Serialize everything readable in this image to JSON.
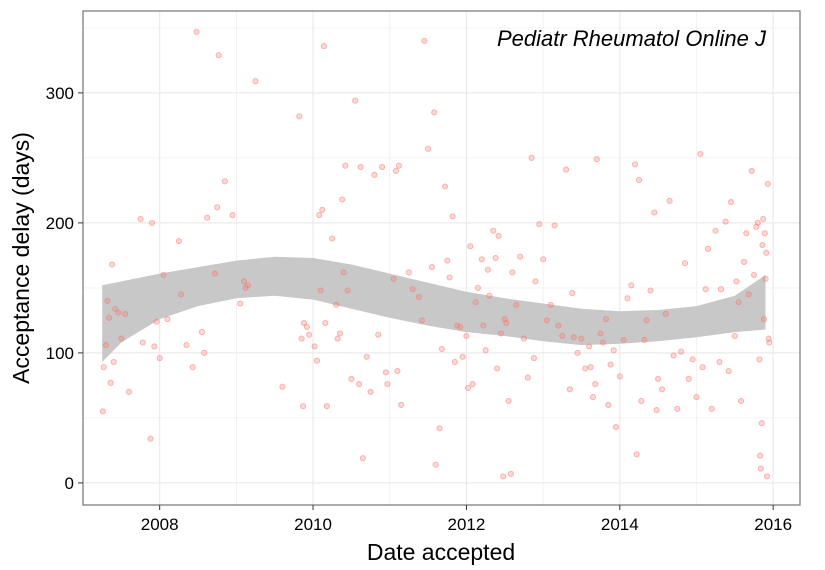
{
  "chart_data": {
    "type": "scatter",
    "title": "",
    "annotation": "Pediatr Rheumatol Online J",
    "xlabel": "Date accepted",
    "ylabel": "Acceptance delay (days)",
    "xlim": [
      2007.0,
      2016.35
    ],
    "ylim": [
      -17,
      363
    ],
    "x_ticks": [
      2008,
      2010,
      2012,
      2014,
      2016
    ],
    "x_tick_labels": [
      "2008",
      "2010",
      "2012",
      "2014",
      "2016"
    ],
    "y_ticks": [
      0,
      100,
      200,
      300
    ],
    "y_tick_labels": [
      "0",
      "100",
      "200",
      "300"
    ],
    "grid": true,
    "colors": {
      "points": "#f8766d",
      "ribbon": "#c8c8c8",
      "panel_border": "#7f7f7f",
      "grid": "#ebebeb"
    },
    "smooth_band": {
      "x": [
        2007.25,
        2007.5,
        2008.0,
        2008.5,
        2009.0,
        2009.5,
        2010.0,
        2010.5,
        2011.0,
        2011.5,
        2012.0,
        2012.5,
        2013.0,
        2013.5,
        2014.0,
        2014.5,
        2015.0,
        2015.5,
        2015.9
      ],
      "upper": [
        152,
        155,
        161,
        166,
        171,
        174,
        173,
        168,
        161,
        154,
        147,
        142,
        138,
        134,
        132,
        133,
        136,
        144,
        160
      ],
      "lower": [
        93,
        108,
        126,
        136,
        142,
        144,
        141,
        134,
        127,
        121,
        116,
        113,
        109,
        106,
        107,
        109,
        112,
        116,
        118
      ]
    },
    "series": [
      {
        "name": "Pediatr Rheumatol Online J",
        "points": [
          [
            2007.26,
            55
          ],
          [
            2007.27,
            89
          ],
          [
            2007.3,
            106
          ],
          [
            2007.32,
            140
          ],
          [
            2007.34,
            127
          ],
          [
            2007.36,
            77
          ],
          [
            2007.38,
            168
          ],
          [
            2007.4,
            93
          ],
          [
            2007.42,
            134
          ],
          [
            2007.46,
            131
          ],
          [
            2007.5,
            111
          ],
          [
            2007.55,
            130
          ],
          [
            2007.6,
            70
          ],
          [
            2007.75,
            203
          ],
          [
            2007.78,
            108
          ],
          [
            2007.88,
            34
          ],
          [
            2007.9,
            200
          ],
          [
            2007.93,
            105
          ],
          [
            2007.96,
            124
          ],
          [
            2008.0,
            96
          ],
          [
            2008.05,
            160
          ],
          [
            2008.1,
            126
          ],
          [
            2008.25,
            186
          ],
          [
            2008.28,
            145
          ],
          [
            2008.35,
            106
          ],
          [
            2008.43,
            89
          ],
          [
            2008.48,
            347
          ],
          [
            2008.55,
            116
          ],
          [
            2008.58,
            100
          ],
          [
            2008.62,
            204
          ],
          [
            2008.72,
            161
          ],
          [
            2008.75,
            212
          ],
          [
            2008.77,
            329
          ],
          [
            2008.85,
            232
          ],
          [
            2008.95,
            206
          ],
          [
            2009.05,
            138
          ],
          [
            2009.1,
            155
          ],
          [
            2009.12,
            150
          ],
          [
            2009.15,
            152
          ],
          [
            2009.25,
            309
          ],
          [
            2009.6,
            74
          ],
          [
            2009.82,
            282
          ],
          [
            2009.85,
            111
          ],
          [
            2009.87,
            59
          ],
          [
            2009.88,
            123
          ],
          [
            2009.92,
            120
          ],
          [
            2009.95,
            114
          ],
          [
            2010.02,
            105
          ],
          [
            2010.05,
            94
          ],
          [
            2010.08,
            206
          ],
          [
            2010.1,
            148
          ],
          [
            2010.12,
            210
          ],
          [
            2010.14,
            336
          ],
          [
            2010.16,
            123
          ],
          [
            2010.18,
            59
          ],
          [
            2010.25,
            188
          ],
          [
            2010.3,
            137
          ],
          [
            2010.32,
            111
          ],
          [
            2010.35,
            115
          ],
          [
            2010.38,
            218
          ],
          [
            2010.4,
            162
          ],
          [
            2010.42,
            244
          ],
          [
            2010.45,
            148
          ],
          [
            2010.5,
            80
          ],
          [
            2010.55,
            294
          ],
          [
            2010.6,
            76
          ],
          [
            2010.62,
            243
          ],
          [
            2010.65,
            19
          ],
          [
            2010.7,
            97
          ],
          [
            2010.75,
            70
          ],
          [
            2010.8,
            237
          ],
          [
            2010.85,
            114
          ],
          [
            2010.9,
            243
          ],
          [
            2010.95,
            85
          ],
          [
            2010.97,
            76
          ],
          [
            2011.05,
            157
          ],
          [
            2011.08,
            240
          ],
          [
            2011.1,
            86
          ],
          [
            2011.12,
            244
          ],
          [
            2011.15,
            60
          ],
          [
            2011.25,
            162
          ],
          [
            2011.3,
            149
          ],
          [
            2011.38,
            143
          ],
          [
            2011.42,
            125
          ],
          [
            2011.45,
            340
          ],
          [
            2011.5,
            257
          ],
          [
            2011.55,
            166
          ],
          [
            2011.58,
            285
          ],
          [
            2011.6,
            14
          ],
          [
            2011.65,
            42
          ],
          [
            2011.68,
            103
          ],
          [
            2011.72,
            228
          ],
          [
            2011.75,
            171
          ],
          [
            2011.78,
            158
          ],
          [
            2011.82,
            205
          ],
          [
            2011.85,
            93
          ],
          [
            2011.88,
            121
          ],
          [
            2011.92,
            120
          ],
          [
            2011.95,
            97
          ],
          [
            2012.0,
            113
          ],
          [
            2012.02,
            73
          ],
          [
            2012.05,
            182
          ],
          [
            2012.08,
            76
          ],
          [
            2012.12,
            139
          ],
          [
            2012.15,
            150
          ],
          [
            2012.2,
            172
          ],
          [
            2012.22,
            121
          ],
          [
            2012.25,
            102
          ],
          [
            2012.28,
            164
          ],
          [
            2012.3,
            144
          ],
          [
            2012.35,
            194
          ],
          [
            2012.38,
            173
          ],
          [
            2012.4,
            88
          ],
          [
            2012.42,
            190
          ],
          [
            2012.45,
            115
          ],
          [
            2012.48,
            5
          ],
          [
            2012.5,
            126
          ],
          [
            2012.52,
            123
          ],
          [
            2012.55,
            63
          ],
          [
            2012.58,
            7
          ],
          [
            2012.6,
            162
          ],
          [
            2012.65,
            137
          ],
          [
            2012.7,
            174
          ],
          [
            2012.75,
            111
          ],
          [
            2012.8,
            81
          ],
          [
            2012.85,
            250
          ],
          [
            2012.88,
            96
          ],
          [
            2012.9,
            155
          ],
          [
            2012.95,
            199
          ],
          [
            2013.0,
            172
          ],
          [
            2013.05,
            125
          ],
          [
            2013.1,
            137
          ],
          [
            2013.15,
            198
          ],
          [
            2013.2,
            121
          ],
          [
            2013.25,
            113
          ],
          [
            2013.3,
            241
          ],
          [
            2013.35,
            72
          ],
          [
            2013.38,
            146
          ],
          [
            2013.4,
            112
          ],
          [
            2013.45,
            100
          ],
          [
            2013.5,
            111
          ],
          [
            2013.55,
            88
          ],
          [
            2013.6,
            105
          ],
          [
            2013.62,
            89
          ],
          [
            2013.65,
            66
          ],
          [
            2013.68,
            76
          ],
          [
            2013.7,
            249
          ],
          [
            2013.75,
            115
          ],
          [
            2013.78,
            108
          ],
          [
            2013.82,
            126
          ],
          [
            2013.85,
            60
          ],
          [
            2013.88,
            91
          ],
          [
            2013.92,
            102
          ],
          [
            2013.95,
            43
          ],
          [
            2014.0,
            82
          ],
          [
            2014.05,
            110
          ],
          [
            2014.1,
            142
          ],
          [
            2014.15,
            152
          ],
          [
            2014.2,
            245
          ],
          [
            2014.22,
            22
          ],
          [
            2014.25,
            233
          ],
          [
            2014.28,
            63
          ],
          [
            2014.32,
            110
          ],
          [
            2014.35,
            125
          ],
          [
            2014.4,
            148
          ],
          [
            2014.45,
            208
          ],
          [
            2014.48,
            56
          ],
          [
            2014.5,
            80
          ],
          [
            2014.55,
            72
          ],
          [
            2014.6,
            130
          ],
          [
            2014.65,
            217
          ],
          [
            2014.7,
            98
          ],
          [
            2014.75,
            57
          ],
          [
            2014.8,
            101
          ],
          [
            2014.85,
            169
          ],
          [
            2014.9,
            80
          ],
          [
            2014.95,
            95
          ],
          [
            2015.0,
            66
          ],
          [
            2015.05,
            253
          ],
          [
            2015.08,
            89
          ],
          [
            2015.12,
            149
          ],
          [
            2015.15,
            180
          ],
          [
            2015.2,
            57
          ],
          [
            2015.25,
            194
          ],
          [
            2015.3,
            93
          ],
          [
            2015.32,
            149
          ],
          [
            2015.38,
            201
          ],
          [
            2015.42,
            86
          ],
          [
            2015.45,
            216
          ],
          [
            2015.5,
            113
          ],
          [
            2015.52,
            155
          ],
          [
            2015.55,
            139
          ],
          [
            2015.58,
            63
          ],
          [
            2015.62,
            170
          ],
          [
            2015.65,
            192
          ],
          [
            2015.68,
            145
          ],
          [
            2015.72,
            240
          ],
          [
            2015.75,
            160
          ],
          [
            2015.78,
            197
          ],
          [
            2015.8,
            200
          ],
          [
            2015.82,
            95
          ],
          [
            2015.83,
            21
          ],
          [
            2015.84,
            11
          ],
          [
            2015.85,
            46
          ],
          [
            2015.86,
            183
          ],
          [
            2015.87,
            203
          ],
          [
            2015.88,
            126
          ],
          [
            2015.89,
            192
          ],
          [
            2015.9,
            157
          ],
          [
            2015.91,
            177
          ],
          [
            2015.92,
            5
          ],
          [
            2015.93,
            230
          ],
          [
            2015.94,
            111
          ],
          [
            2015.95,
            108
          ]
        ]
      }
    ]
  }
}
